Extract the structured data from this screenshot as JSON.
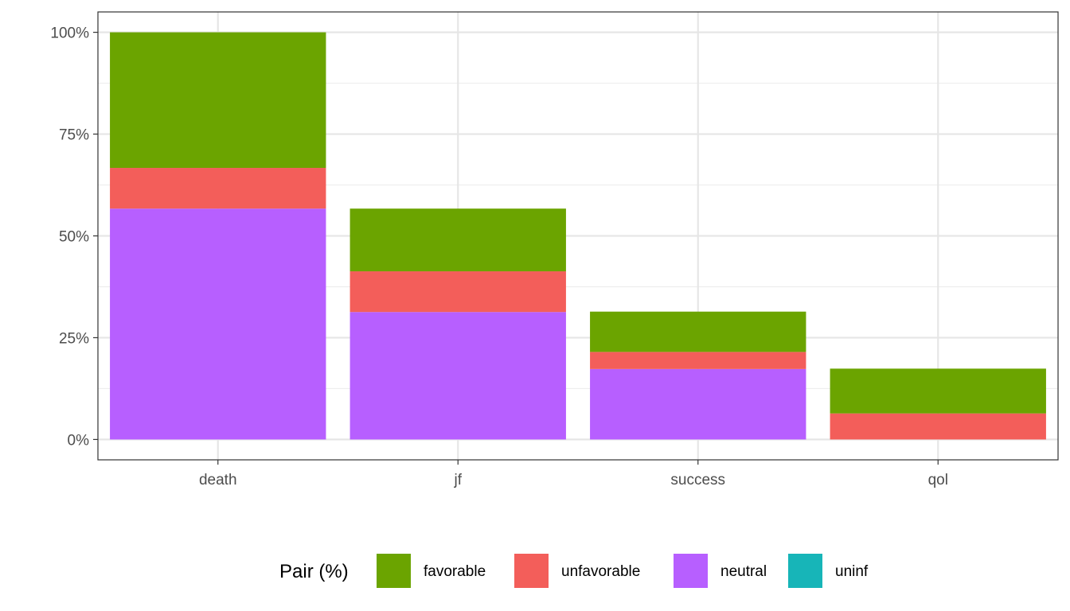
{
  "chart_data": {
    "type": "bar",
    "stacked": true,
    "categories": [
      "death",
      "jf",
      "success",
      "qol"
    ],
    "series": [
      {
        "name": "neutral",
        "color": "#B75FFF",
        "values": [
          56.7,
          31.3,
          17.3,
          0
        ]
      },
      {
        "name": "unfavorable",
        "color": "#F35E5A",
        "values": [
          10.0,
          10.0,
          4.2,
          6.4
        ]
      },
      {
        "name": "favorable",
        "color": "#6BA400",
        "values": [
          33.3,
          15.4,
          9.9,
          11.0
        ]
      },
      {
        "name": "uninf",
        "color": "#17B5B8",
        "values": [
          0,
          0,
          0,
          0
        ]
      }
    ],
    "ylim": [
      -5,
      105
    ],
    "yticks": [
      0,
      25,
      50,
      75,
      100
    ],
    "ytick_labels": [
      "0%",
      "25%",
      "50%",
      "75%",
      "100%"
    ],
    "grid": true,
    "legend": {
      "title": "Pair (%)",
      "position": "bottom",
      "items": [
        "favorable",
        "unfavorable",
        "neutral",
        "uninf"
      ]
    }
  }
}
